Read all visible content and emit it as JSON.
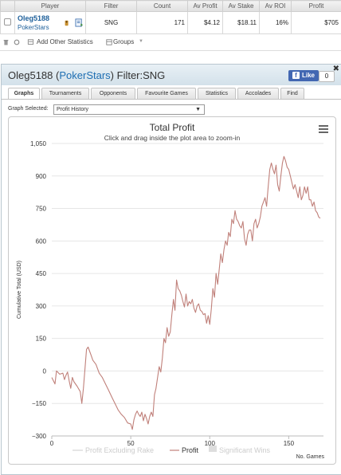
{
  "stats_table": {
    "headers": [
      "Player",
      "Filter",
      "Count",
      "Av Profit",
      "Av Stake",
      "Av ROI",
      "Profit"
    ],
    "row": {
      "player_name": "Oleg5188",
      "player_site": "PokerStars",
      "filter": "SNG",
      "count": "171",
      "av_profit": "$4.12",
      "av_stake": "$18.11",
      "av_roi": "16%",
      "profit": "$705"
    }
  },
  "toolbar": {
    "add_stats_label": "Add Other Statistics",
    "groups_label": "Groups"
  },
  "panel": {
    "title_name": "Oleg5188",
    "title_site": "PokerStars",
    "title_filter": "Filter:SNG",
    "fb_like_label": "Like",
    "fb_count": "0",
    "tabs": [
      "Graphs",
      "Tournaments",
      "Opponents",
      "Favourite Games",
      "Statistics",
      "Accolades",
      "Find"
    ],
    "active_tab": "Graphs",
    "graph_selected_label": "Graph Selected:",
    "graph_selected_value": "Profit History"
  },
  "colors": {
    "profit_line": "#c0807a",
    "excl_rake_line": "#bbbbbb",
    "link_blue": "#1f6fb3"
  },
  "chart_data": {
    "type": "line",
    "title": "Total Profit",
    "subtitle": "Click and drag inside the plot area to zoom-in",
    "xlabel": "No. Games",
    "ylabel": "Cumulative Total (USD)",
    "xlim": [
      0,
      172
    ],
    "ylim": [
      -300,
      1050
    ],
    "x_ticks": [
      0,
      50,
      100,
      150
    ],
    "y_ticks": [
      -300,
      -150,
      0,
      150,
      300,
      450,
      600,
      750,
      900,
      1050
    ],
    "y_tick_labels": [
      "−300",
      "−150",
      "0",
      "150",
      "300",
      "450",
      "600",
      "750",
      "900",
      "1,050"
    ],
    "legend": [
      {
        "name": "Profit Excluding Rake",
        "visible": false
      },
      {
        "name": "Profit",
        "visible": true
      },
      {
        "name": "Significant Wins",
        "visible": false
      }
    ],
    "series": [
      {
        "name": "Profit",
        "points": [
          [
            0,
            -30
          ],
          [
            2,
            -60
          ],
          [
            3,
            0
          ],
          [
            5,
            -15
          ],
          [
            7,
            -10
          ],
          [
            8,
            -40
          ],
          [
            9,
            -20
          ],
          [
            10,
            -5
          ],
          [
            11,
            -45
          ],
          [
            12,
            -80
          ],
          [
            13,
            -30
          ],
          [
            14,
            -50
          ],
          [
            16,
            -70
          ],
          [
            18,
            -95
          ],
          [
            19,
            -150
          ],
          [
            20,
            -80
          ],
          [
            22,
            100
          ],
          [
            23,
            110
          ],
          [
            24,
            90
          ],
          [
            25,
            70
          ],
          [
            26,
            50
          ],
          [
            28,
            30
          ],
          [
            30,
            -10
          ],
          [
            32,
            -30
          ],
          [
            34,
            -60
          ],
          [
            36,
            -90
          ],
          [
            38,
            -120
          ],
          [
            40,
            -150
          ],
          [
            42,
            -180
          ],
          [
            44,
            -200
          ],
          [
            46,
            -215
          ],
          [
            48,
            -240
          ],
          [
            50,
            -245
          ],
          [
            51,
            -270
          ],
          [
            52,
            -225
          ],
          [
            53,
            -200
          ],
          [
            54,
            -185
          ],
          [
            55,
            -200
          ],
          [
            56,
            -210
          ],
          [
            57,
            -190
          ],
          [
            58,
            -230
          ],
          [
            59,
            -200
          ],
          [
            60,
            -220
          ],
          [
            61,
            -245
          ],
          [
            62,
            -210
          ],
          [
            63,
            -190
          ],
          [
            64,
            -210
          ],
          [
            65,
            -110
          ],
          [
            66,
            -80
          ],
          [
            67,
            -30
          ],
          [
            68,
            20
          ],
          [
            69,
            -5
          ],
          [
            70,
            60
          ],
          [
            71,
            150
          ],
          [
            72,
            130
          ],
          [
            73,
            200
          ],
          [
            74,
            160
          ],
          [
            75,
            180
          ],
          [
            76,
            260
          ],
          [
            77,
            330
          ],
          [
            78,
            280
          ],
          [
            79,
            420
          ],
          [
            80,
            380
          ],
          [
            81,
            370
          ],
          [
            82,
            350
          ],
          [
            83,
            320
          ],
          [
            84,
            295
          ],
          [
            85,
            355
          ],
          [
            86,
            300
          ],
          [
            87,
            320
          ],
          [
            88,
            310
          ],
          [
            89,
            330
          ],
          [
            90,
            290
          ],
          [
            91,
            270
          ],
          [
            92,
            300
          ],
          [
            93,
            310
          ],
          [
            94,
            280
          ],
          [
            95,
            275
          ],
          [
            96,
            260
          ],
          [
            97,
            265
          ],
          [
            98,
            220
          ],
          [
            99,
            255
          ],
          [
            100,
            215
          ],
          [
            101,
            285
          ],
          [
            102,
            380
          ],
          [
            103,
            340
          ],
          [
            104,
            450
          ],
          [
            105,
            400
          ],
          [
            106,
            470
          ],
          [
            107,
            540
          ],
          [
            108,
            500
          ],
          [
            109,
            560
          ],
          [
            110,
            600
          ],
          [
            111,
            580
          ],
          [
            112,
            640
          ],
          [
            113,
            620
          ],
          [
            114,
            700
          ],
          [
            115,
            680
          ],
          [
            116,
            740
          ],
          [
            117,
            700
          ],
          [
            118,
            690
          ],
          [
            119,
            670
          ],
          [
            120,
            660
          ],
          [
            121,
            690
          ],
          [
            122,
            610
          ],
          [
            123,
            580
          ],
          [
            124,
            630
          ],
          [
            125,
            650
          ],
          [
            126,
            650
          ],
          [
            127,
            600
          ],
          [
            128,
            680
          ],
          [
            129,
            700
          ],
          [
            130,
            660
          ],
          [
            131,
            680
          ],
          [
            132,
            710
          ],
          [
            133,
            760
          ],
          [
            134,
            780
          ],
          [
            135,
            800
          ],
          [
            136,
            760
          ],
          [
            137,
            850
          ],
          [
            138,
            930
          ],
          [
            139,
            960
          ],
          [
            140,
            930
          ],
          [
            141,
            910
          ],
          [
            142,
            950
          ],
          [
            143,
            860
          ],
          [
            144,
            830
          ],
          [
            145,
            900
          ],
          [
            146,
            960
          ],
          [
            147,
            990
          ],
          [
            148,
            970
          ],
          [
            149,
            940
          ],
          [
            150,
            930
          ],
          [
            151,
            900
          ],
          [
            152,
            870
          ],
          [
            153,
            840
          ],
          [
            154,
            860
          ],
          [
            155,
            830
          ],
          [
            156,
            800
          ],
          [
            157,
            850
          ],
          [
            158,
            790
          ],
          [
            159,
            810
          ],
          [
            160,
            850
          ],
          [
            161,
            820
          ],
          [
            162,
            850
          ],
          [
            163,
            790
          ],
          [
            164,
            790
          ],
          [
            165,
            760
          ],
          [
            166,
            780
          ],
          [
            167,
            740
          ],
          [
            168,
            730
          ],
          [
            169,
            710
          ],
          [
            170,
            705
          ]
        ]
      }
    ]
  }
}
